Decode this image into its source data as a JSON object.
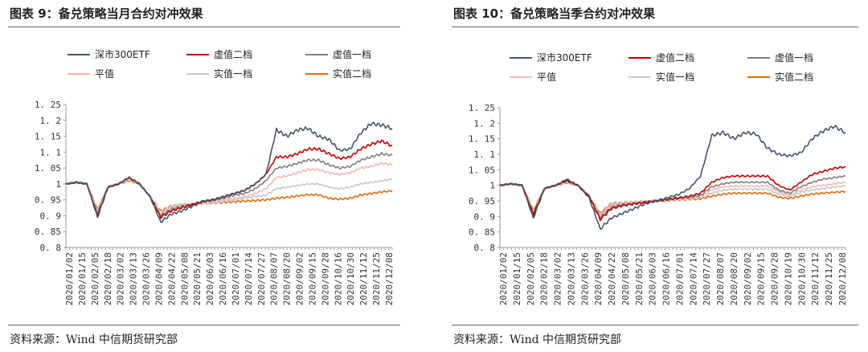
{
  "charts": [
    {
      "title": "图表 9：备兑策略当月合约对冲效果",
      "source": "资料来源：Wind 中信期货研究部"
    },
    {
      "title": "图表 10：备兑策略当季合约对冲效果",
      "source": "资料来源：Wind 中信期货研究部"
    }
  ],
  "chart_data": [
    {
      "type": "line",
      "title": "图表 9：备兑策略当月合约对冲效果",
      "xlabel": "",
      "ylabel": "",
      "ylim": [
        0.8,
        1.25
      ],
      "y_ticks": [
        "1. 25",
        "1. 2",
        "1. 15",
        "1. 1",
        "1. 05",
        "1",
        "0. 95",
        "0. 9",
        "0. 85",
        "0. 8"
      ],
      "x_ticks": [
        "2020/01/02",
        "2020/01/15",
        "2020/02/05",
        "2020/02/18",
        "2020/03/02",
        "2020/03/13",
        "2020/03/26",
        "2020/04/09",
        "2020/04/22",
        "2020/05/08",
        "2020/05/21",
        "2020/06/03",
        "2020/06/16",
        "2020/07/01",
        "2020/07/14",
        "2020/07/27",
        "2020/08/07",
        "2020/08/20",
        "2020/09/02",
        "2020/09/15",
        "2020/09/28",
        "2020/10/16",
        "2020/10/30",
        "2020/11/12",
        "2020/11/25",
        "2020/12/08"
      ],
      "legend_position": "top",
      "series": [
        {
          "name": "深市300ETF",
          "color": "#44546a",
          "values": [
            1.0,
            1.005,
            1.0,
            0.895,
            0.99,
            1.0,
            1.02,
            1.0,
            0.96,
            0.88,
            0.905,
            0.915,
            0.93,
            0.945,
            0.95,
            0.96,
            0.97,
            0.98,
            1.0,
            1.03,
            1.17,
            1.15,
            1.17,
            1.175,
            1.15,
            1.14,
            1.105,
            1.11,
            1.16,
            1.19,
            1.185,
            1.175
          ]
        },
        {
          "name": "虚值二档",
          "color": "#c00000",
          "values": [
            1.0,
            1.005,
            1.0,
            0.9,
            0.99,
            1.0,
            1.02,
            1.0,
            0.96,
            0.895,
            0.915,
            0.925,
            0.935,
            0.945,
            0.95,
            0.96,
            0.97,
            0.98,
            1.0,
            1.03,
            1.085,
            1.085,
            1.095,
            1.11,
            1.11,
            1.095,
            1.08,
            1.085,
            1.11,
            1.125,
            1.135,
            1.12
          ]
        },
        {
          "name": "虚值一档",
          "color": "#7f7f7f",
          "values": [
            1.0,
            1.005,
            1.0,
            0.905,
            0.99,
            1.0,
            1.02,
            1.0,
            0.96,
            0.9,
            0.92,
            0.93,
            0.935,
            0.945,
            0.95,
            0.955,
            0.965,
            0.97,
            0.985,
            1.01,
            1.05,
            1.055,
            1.065,
            1.075,
            1.075,
            1.06,
            1.05,
            1.055,
            1.075,
            1.085,
            1.095,
            1.09
          ]
        },
        {
          "name": "平值",
          "color": "#f4b6b6",
          "values": [
            1.0,
            1.005,
            1.0,
            0.91,
            0.99,
            1.0,
            1.015,
            1.0,
            0.96,
            0.905,
            0.925,
            0.93,
            0.935,
            0.94,
            0.945,
            0.95,
            0.955,
            0.96,
            0.97,
            0.985,
            1.02,
            1.025,
            1.035,
            1.045,
            1.045,
            1.035,
            1.03,
            1.035,
            1.05,
            1.055,
            1.065,
            1.06
          ]
        },
        {
          "name": "实值一档",
          "color": "#c8c8c8",
          "values": [
            1.0,
            1.005,
            1.0,
            0.915,
            0.99,
            1.0,
            1.015,
            1.0,
            0.96,
            0.91,
            0.93,
            0.935,
            0.935,
            0.94,
            0.94,
            0.945,
            0.95,
            0.955,
            0.96,
            0.965,
            0.985,
            0.99,
            0.995,
            1.0,
            1.0,
            0.99,
            0.985,
            0.99,
            1.0,
            1.005,
            1.01,
            1.015
          ]
        },
        {
          "name": "实值二档",
          "color": "#e26b0a",
          "values": [
            1.0,
            1.005,
            1.0,
            0.92,
            0.99,
            1.0,
            1.01,
            1.0,
            0.96,
            0.915,
            0.93,
            0.935,
            0.935,
            0.94,
            0.94,
            0.942,
            0.944,
            0.946,
            0.948,
            0.95,
            0.955,
            0.958,
            0.962,
            0.966,
            0.966,
            0.955,
            0.952,
            0.955,
            0.965,
            0.97,
            0.975,
            0.978
          ]
        }
      ]
    },
    {
      "type": "line",
      "title": "图表 10：备兑策略当季合约对冲效果",
      "xlabel": "",
      "ylabel": "",
      "ylim": [
        0.8,
        1.25
      ],
      "y_ticks": [
        "1. 25",
        "1. 2",
        "1. 15",
        "1. 1",
        "1. 05",
        "1",
        "0. 95",
        "0. 9",
        "0. 85",
        "0. 8"
      ],
      "x_ticks": [
        "2020/01/02",
        "2020/01/15",
        "2020/02/05",
        "2020/02/18",
        "2020/03/02",
        "2020/03/13",
        "2020/03/26",
        "2020/04/09",
        "2020/04/22",
        "2020/05/08",
        "2020/05/21",
        "2020/06/03",
        "2020/06/16",
        "2020/07/01",
        "2020/07/14",
        "2020/07/27",
        "2020/08/07",
        "2020/08/20",
        "2020/09/02",
        "2020/09/15",
        "2020/09/28",
        "2020/10/19",
        "2020/10/30",
        "2020/11/12",
        "2020/11/25",
        "2020/12/08"
      ],
      "legend_position": "top",
      "series": [
        {
          "name": "深市300ETF",
          "color": "#44546a",
          "values": [
            1.0,
            1.005,
            1.0,
            0.895,
            0.99,
            1.0,
            1.02,
            1.0,
            0.96,
            0.86,
            0.895,
            0.91,
            0.925,
            0.94,
            0.95,
            0.96,
            0.97,
            0.99,
            1.03,
            1.16,
            1.17,
            1.15,
            1.17,
            1.165,
            1.12,
            1.1,
            1.095,
            1.105,
            1.15,
            1.175,
            1.19,
            1.17
          ]
        },
        {
          "name": "虚值二档",
          "color": "#c00000",
          "values": [
            1.0,
            1.005,
            1.0,
            0.905,
            0.99,
            1.0,
            1.015,
            1.0,
            0.965,
            0.89,
            0.925,
            0.935,
            0.94,
            0.945,
            0.95,
            0.955,
            0.96,
            0.965,
            0.975,
            1.01,
            1.025,
            1.03,
            1.03,
            1.03,
            1.03,
            1.0,
            0.985,
            1.01,
            1.035,
            1.045,
            1.055,
            1.06
          ]
        },
        {
          "name": "虚值一档",
          "color": "#7f7f7f",
          "values": [
            1.0,
            1.005,
            1.0,
            0.91,
            0.99,
            1.0,
            1.015,
            1.0,
            0.965,
            0.895,
            0.93,
            0.938,
            0.942,
            0.946,
            0.95,
            0.954,
            0.958,
            0.962,
            0.968,
            0.995,
            1.005,
            1.01,
            1.01,
            1.01,
            1.01,
            0.985,
            0.975,
            0.995,
            1.01,
            1.02,
            1.025,
            1.03
          ]
        },
        {
          "name": "平值",
          "color": "#f4b6b6",
          "values": [
            1.0,
            1.005,
            1.0,
            0.912,
            0.99,
            1.0,
            1.012,
            1.0,
            0.965,
            0.9,
            0.935,
            0.94,
            0.944,
            0.947,
            0.95,
            0.953,
            0.956,
            0.96,
            0.964,
            0.985,
            0.995,
            0.998,
            0.998,
            0.998,
            0.998,
            0.98,
            0.97,
            0.985,
            0.995,
            1.0,
            1.005,
            1.01
          ]
        },
        {
          "name": "实值一档",
          "color": "#c8c8c8",
          "values": [
            1.0,
            1.005,
            1.0,
            0.915,
            0.99,
            1.0,
            1.01,
            1.0,
            0.965,
            0.905,
            0.94,
            0.943,
            0.946,
            0.948,
            0.95,
            0.952,
            0.954,
            0.957,
            0.96,
            0.975,
            0.985,
            0.988,
            0.988,
            0.988,
            0.988,
            0.972,
            0.965,
            0.978,
            0.985,
            0.99,
            0.995,
            0.998
          ]
        },
        {
          "name": "实值二档",
          "color": "#e26b0a",
          "values": [
            1.0,
            1.005,
            1.0,
            0.92,
            0.99,
            1.0,
            1.008,
            1.0,
            0.965,
            0.91,
            0.942,
            0.944,
            0.946,
            0.948,
            0.95,
            0.951,
            0.953,
            0.955,
            0.957,
            0.965,
            0.972,
            0.975,
            0.975,
            0.975,
            0.975,
            0.962,
            0.958,
            0.966,
            0.972,
            0.975,
            0.978,
            0.98
          ]
        }
      ]
    }
  ]
}
